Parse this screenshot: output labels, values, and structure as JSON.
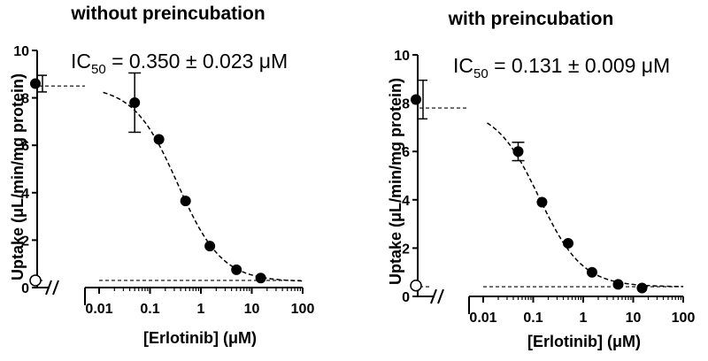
{
  "chart_data": [
    {
      "type": "scatter",
      "title": "without preincubation",
      "xlabel": "[Erlotinib] (μM)",
      "ylabel": "Uptake (μL/min/mg protein)",
      "annotation": {
        "prefix": "IC",
        "subscript": "50",
        "suffix": " = 0.350 ± 0.023 μM"
      },
      "xscale": "log",
      "xlim": [
        0.01,
        100
      ],
      "ylim": [
        0,
        10
      ],
      "xticks": [
        0.01,
        0.1,
        1,
        10,
        100
      ],
      "xtick_labels": [
        "0.01",
        "0.1",
        "1",
        "10",
        "100"
      ],
      "yticks": [
        0,
        2,
        4,
        6,
        8,
        10
      ],
      "ytick_labels": [
        "0",
        "2",
        "4",
        "6",
        "8",
        "10"
      ],
      "control": {
        "x_label": "0",
        "value": 8.6,
        "error": 0.35,
        "basal": 0.3
      },
      "series": [
        {
          "name": "Erlotinib",
          "x": [
            0.05,
            0.15,
            0.5,
            1.5,
            5,
            15
          ],
          "y": [
            7.8,
            6.25,
            3.65,
            1.75,
            0.75,
            0.4
          ],
          "error": [
            1.25,
            0,
            0,
            0,
            0,
            0
          ]
        }
      ],
      "fit": {
        "top": 8.5,
        "bottom": 0.25,
        "ic50": 0.35,
        "hill": 1.0
      },
      "basal_line": 0.3
    },
    {
      "type": "scatter",
      "title": "with preincubation",
      "xlabel": "[Erlotinib] (μM)",
      "ylabel": "Uptake (μL/min/mg protein)",
      "annotation": {
        "prefix": "IC",
        "subscript": "50",
        "suffix": " = 0.131 ± 0.009 μM"
      },
      "xscale": "log",
      "xlim": [
        0.01,
        100
      ],
      "ylim": [
        0,
        10
      ],
      "xticks": [
        0.01,
        0.1,
        1,
        10,
        100
      ],
      "xtick_labels": [
        "0.01",
        "0.1",
        "1",
        "10",
        "100"
      ],
      "yticks": [
        0,
        2,
        4,
        6,
        8,
        10
      ],
      "ytick_labels": [
        "0",
        "2",
        "4",
        "6",
        "8",
        "10"
      ],
      "control": {
        "x_label": "0",
        "value": 8.15,
        "error": 0.8,
        "basal": 0.45
      },
      "series": [
        {
          "name": "Erlotinib",
          "x": [
            0.05,
            0.15,
            0.5,
            1.5,
            5,
            15
          ],
          "y": [
            6.0,
            3.9,
            2.2,
            1.0,
            0.5,
            0.35
          ],
          "error": [
            0.38,
            0,
            0,
            0,
            0,
            0
          ]
        }
      ],
      "fit": {
        "top": 7.8,
        "bottom": 0.4,
        "ic50": 0.131,
        "hill": 1.0
      },
      "basal_line": 0.4
    }
  ]
}
